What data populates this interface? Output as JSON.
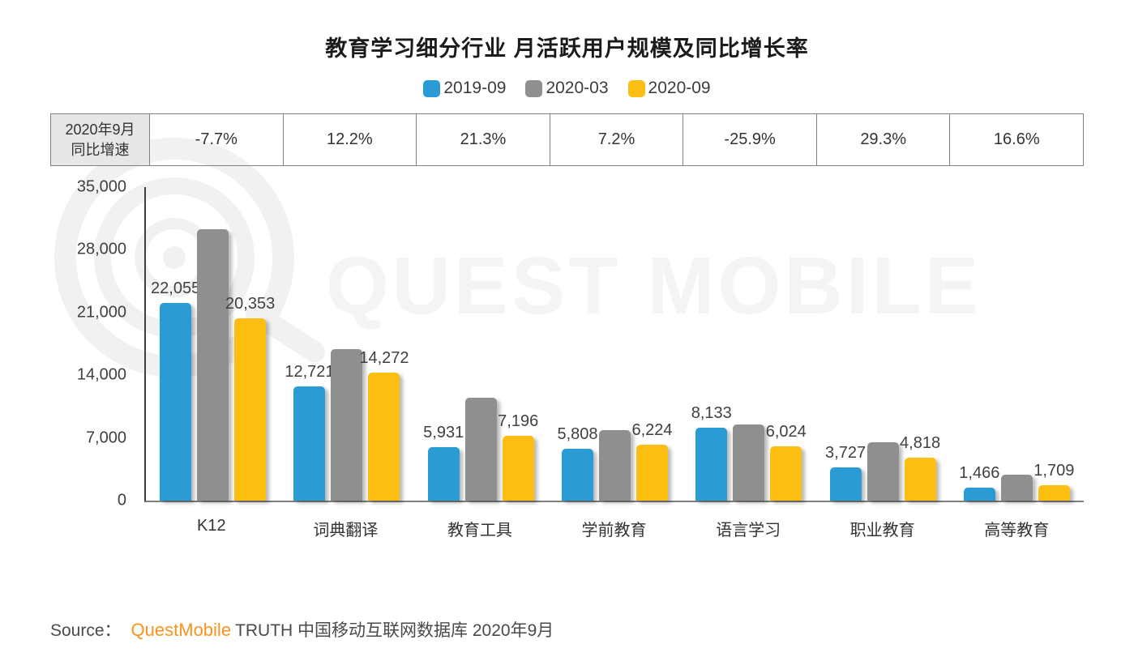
{
  "title": "教育学习细分行业 月活跃用户规模及同比增长率",
  "legend": {
    "items": [
      {
        "label": "2019-09",
        "color": "#2A9BD5"
      },
      {
        "label": "2020-03",
        "color": "#8F8F8F"
      },
      {
        "label": "2020-09",
        "color": "#FDBE12"
      }
    ]
  },
  "growth_row": {
    "header_line1": "2020年9月",
    "header_line2": "同比增速",
    "values": [
      "-7.7%",
      "12.2%",
      "21.3%",
      "7.2%",
      "-25.9%",
      "29.3%",
      "16.6%"
    ]
  },
  "chart_data": {
    "type": "bar",
    "title": "教育学习细分行业 月活跃用户规模及同比增长率",
    "categories": [
      "K12",
      "词典翻译",
      "教育工具",
      "学前教育",
      "语言学习",
      "职业教育",
      "高等教育"
    ],
    "series": [
      {
        "name": "2019-09",
        "color": "#2A9BD5",
        "labels_shown": true,
        "values": [
          22055,
          12721,
          5931,
          5808,
          8133,
          3727,
          1466
        ]
      },
      {
        "name": "2020-03",
        "color": "#8F8F8F",
        "labels_shown": false,
        "values": [
          30300,
          16900,
          11500,
          7900,
          8500,
          6500,
          2900
        ]
      },
      {
        "name": "2020-09",
        "color": "#FDBE12",
        "labels_shown": true,
        "values": [
          20353,
          14272,
          7196,
          6224,
          6024,
          4818,
          1709
        ]
      }
    ],
    "xlabel": "",
    "ylabel": "",
    "ylim": [
      0,
      35000
    ],
    "yticks": [
      0,
      7000,
      14000,
      21000,
      28000,
      35000
    ],
    "grid": false,
    "legend_position": "top",
    "growth_values_2020_09": [
      "-7.7%",
      "12.2%",
      "21.3%",
      "7.2%",
      "-25.9%",
      "29.3%",
      "16.6%"
    ]
  },
  "watermark": {
    "text": "QUEST MOBILE"
  },
  "source": {
    "prefix": "Source：",
    "brand": "QuestMobile",
    "suffix": "TRUTH 中国移动互联网数据库 2020年9月",
    "brand_color": "#F7941E"
  }
}
